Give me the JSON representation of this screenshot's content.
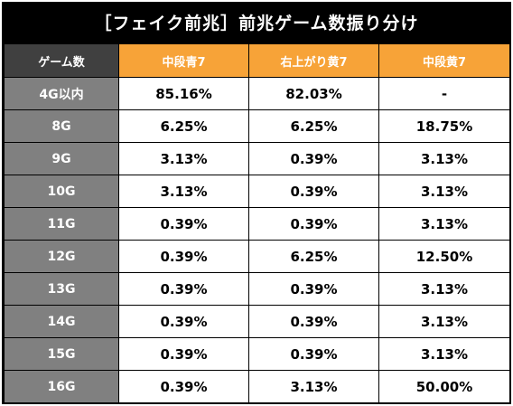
{
  "title": "［フェイク前兆］前兆ゲーム数振り分け",
  "table": {
    "corner_label": "ゲーム数",
    "columns": [
      "中段青7",
      "右上がり黄7",
      "中段黄7"
    ],
    "rows": [
      {
        "label": "4G以内",
        "values": [
          "85.16%",
          "82.03%",
          "-"
        ]
      },
      {
        "label": "8G",
        "values": [
          "6.25%",
          "6.25%",
          "18.75%"
        ]
      },
      {
        "label": "9G",
        "values": [
          "3.13%",
          "0.39%",
          "3.13%"
        ]
      },
      {
        "label": "10G",
        "values": [
          "3.13%",
          "0.39%",
          "3.13%"
        ]
      },
      {
        "label": "11G",
        "values": [
          "0.39%",
          "0.39%",
          "3.13%"
        ]
      },
      {
        "label": "12G",
        "values": [
          "0.39%",
          "6.25%",
          "12.50%"
        ]
      },
      {
        "label": "13G",
        "values": [
          "0.39%",
          "0.39%",
          "3.13%"
        ]
      },
      {
        "label": "14G",
        "values": [
          "0.39%",
          "0.39%",
          "3.13%"
        ]
      },
      {
        "label": "15G",
        "values": [
          "0.39%",
          "0.39%",
          "3.13%"
        ]
      },
      {
        "label": "16G",
        "values": [
          "0.39%",
          "3.13%",
          "50.00%"
        ]
      }
    ]
  },
  "colors": {
    "title_bg": "#000000",
    "header_bg": "#f7a338",
    "corner_bg": "#404040",
    "row_label_bg": "#808080"
  }
}
